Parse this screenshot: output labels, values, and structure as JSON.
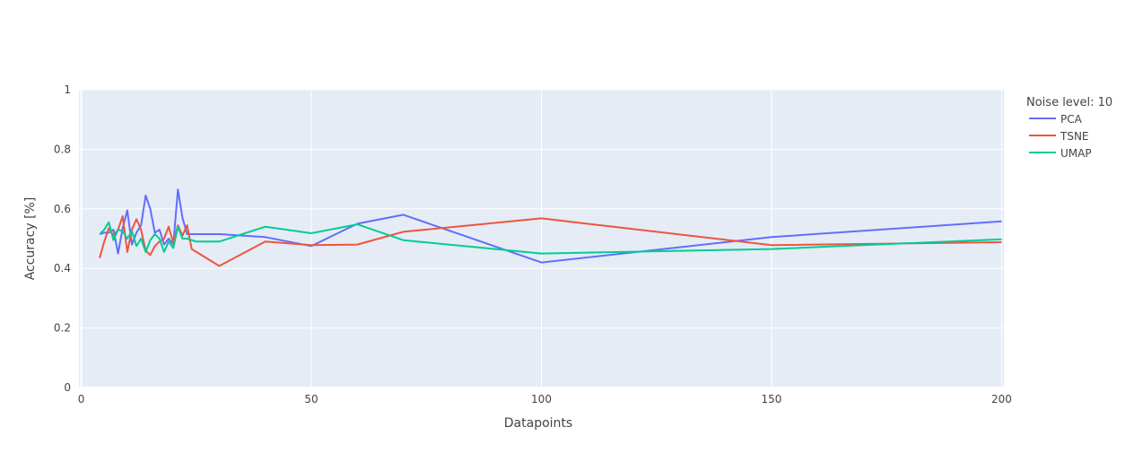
{
  "chart_data": {
    "type": "line",
    "xlabel": "Datapoints",
    "ylabel": "Accuracy [%]",
    "xlim": [
      -0.5,
      200.5
    ],
    "ylim": [
      0,
      1
    ],
    "x_ticks": [
      0,
      50,
      100,
      150,
      200
    ],
    "x_tick_labels": [
      "0",
      "50",
      "100",
      "150",
      "200"
    ],
    "y_ticks": [
      0,
      0.2,
      0.4,
      0.6,
      0.8,
      1
    ],
    "y_tick_labels": [
      "0",
      "0.2",
      "0.4",
      "0.6",
      "0.8",
      "1"
    ],
    "grid": true,
    "legend": {
      "title": "Noise level: 10",
      "position": "right"
    },
    "plot_bgcolor": "#e5ecf6",
    "series": [
      {
        "name": "PCA",
        "color": "#636efa",
        "points": [
          [
            4,
            0.515
          ],
          [
            5,
            0.52
          ],
          [
            6,
            0.52
          ],
          [
            7,
            0.53
          ],
          [
            8,
            0.45
          ],
          [
            9,
            0.535
          ],
          [
            10,
            0.595
          ],
          [
            11,
            0.48
          ],
          [
            12,
            0.52
          ],
          [
            13,
            0.545
          ],
          [
            14,
            0.645
          ],
          [
            15,
            0.6
          ],
          [
            16,
            0.52
          ],
          [
            17,
            0.53
          ],
          [
            18,
            0.48
          ],
          [
            19,
            0.5
          ],
          [
            20,
            0.48
          ],
          [
            21,
            0.665
          ],
          [
            22,
            0.57
          ],
          [
            23,
            0.515
          ],
          [
            25,
            0.515
          ],
          [
            30,
            0.515
          ],
          [
            40,
            0.505
          ],
          [
            50,
            0.475
          ],
          [
            60,
            0.55
          ],
          [
            70,
            0.58
          ],
          [
            100,
            0.42
          ],
          [
            150,
            0.505
          ],
          [
            200,
            0.558
          ]
        ]
      },
      {
        "name": "TSNE",
        "color": "#ef553b",
        "points": [
          [
            4,
            0.435
          ],
          [
            5,
            0.49
          ],
          [
            6,
            0.535
          ],
          [
            7,
            0.51
          ],
          [
            8,
            0.53
          ],
          [
            9,
            0.575
          ],
          [
            10,
            0.455
          ],
          [
            11,
            0.53
          ],
          [
            12,
            0.565
          ],
          [
            13,
            0.53
          ],
          [
            14,
            0.46
          ],
          [
            15,
            0.445
          ],
          [
            16,
            0.475
          ],
          [
            17,
            0.49
          ],
          [
            18,
            0.5
          ],
          [
            19,
            0.54
          ],
          [
            20,
            0.485
          ],
          [
            21,
            0.545
          ],
          [
            22,
            0.51
          ],
          [
            23,
            0.545
          ],
          [
            24,
            0.465
          ],
          [
            30,
            0.408
          ],
          [
            40,
            0.49
          ],
          [
            50,
            0.478
          ],
          [
            60,
            0.48
          ],
          [
            70,
            0.523
          ],
          [
            100,
            0.568
          ],
          [
            150,
            0.478
          ],
          [
            200,
            0.488
          ]
        ]
      },
      {
        "name": "UMAP",
        "color": "#00cc96",
        "points": [
          [
            4,
            0.515
          ],
          [
            5,
            0.53
          ],
          [
            6,
            0.555
          ],
          [
            7,
            0.495
          ],
          [
            8,
            0.53
          ],
          [
            9,
            0.525
          ],
          [
            10,
            0.5
          ],
          [
            11,
            0.525
          ],
          [
            12,
            0.475
          ],
          [
            13,
            0.5
          ],
          [
            14,
            0.455
          ],
          [
            15,
            0.495
          ],
          [
            16,
            0.515
          ],
          [
            17,
            0.5
          ],
          [
            18,
            0.455
          ],
          [
            19,
            0.49
          ],
          [
            20,
            0.468
          ],
          [
            21,
            0.54
          ],
          [
            22,
            0.5
          ],
          [
            23,
            0.5
          ],
          [
            25,
            0.49
          ],
          [
            30,
            0.49
          ],
          [
            40,
            0.54
          ],
          [
            50,
            0.518
          ],
          [
            60,
            0.548
          ],
          [
            70,
            0.495
          ],
          [
            100,
            0.45
          ],
          [
            150,
            0.465
          ],
          [
            200,
            0.498
          ]
        ]
      }
    ]
  }
}
